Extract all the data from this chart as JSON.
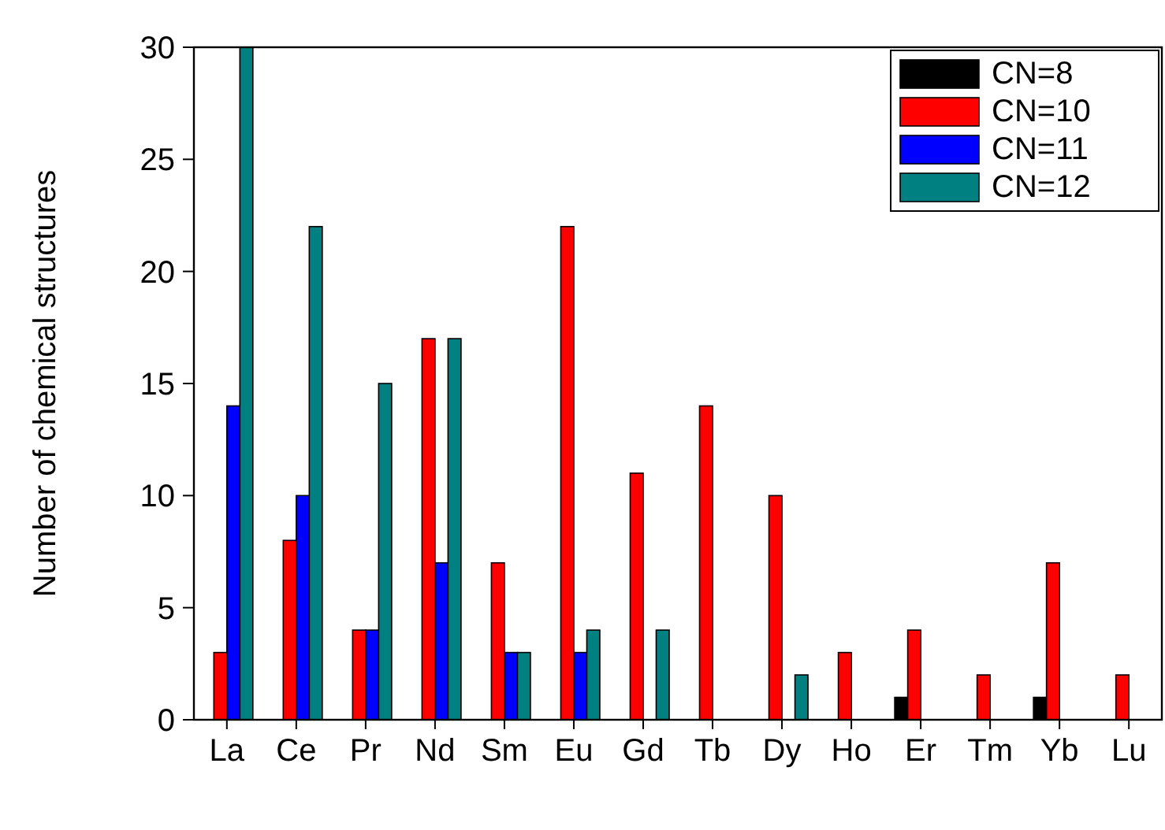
{
  "chart_data": {
    "type": "bar",
    "ylabel": "Number of chemical structures",
    "categories": [
      "La",
      "Ce",
      "Pr",
      "Nd",
      "Sm",
      "Eu",
      "Gd",
      "Tb",
      "Dy",
      "Ho",
      "Er",
      "Tm",
      "Yb",
      "Lu"
    ],
    "series": [
      {
        "name": "CN=8",
        "color": "#000000",
        "values": [
          0,
          0,
          0,
          0,
          0,
          0,
          0,
          0,
          0,
          0,
          1,
          0,
          1,
          0
        ]
      },
      {
        "name": "CN=10",
        "color": "#ff0000",
        "values": [
          3,
          8,
          4,
          17,
          7,
          22,
          11,
          14,
          10,
          3,
          4,
          2,
          7,
          2
        ]
      },
      {
        "name": "CN=11",
        "color": "#0000ff",
        "values": [
          14,
          10,
          4,
          7,
          3,
          3,
          0,
          0,
          0,
          0,
          0,
          0,
          0,
          0
        ]
      },
      {
        "name": "CN=12",
        "color": "#008080",
        "values": [
          30,
          22,
          15,
          17,
          3,
          4,
          4,
          0,
          2,
          0,
          0,
          0,
          0,
          0
        ]
      }
    ],
    "ylim": [
      0,
      30
    ],
    "yticks": [
      0,
      5,
      10,
      15,
      20,
      25,
      30
    ],
    "legend": "top right",
    "grid": false
  }
}
